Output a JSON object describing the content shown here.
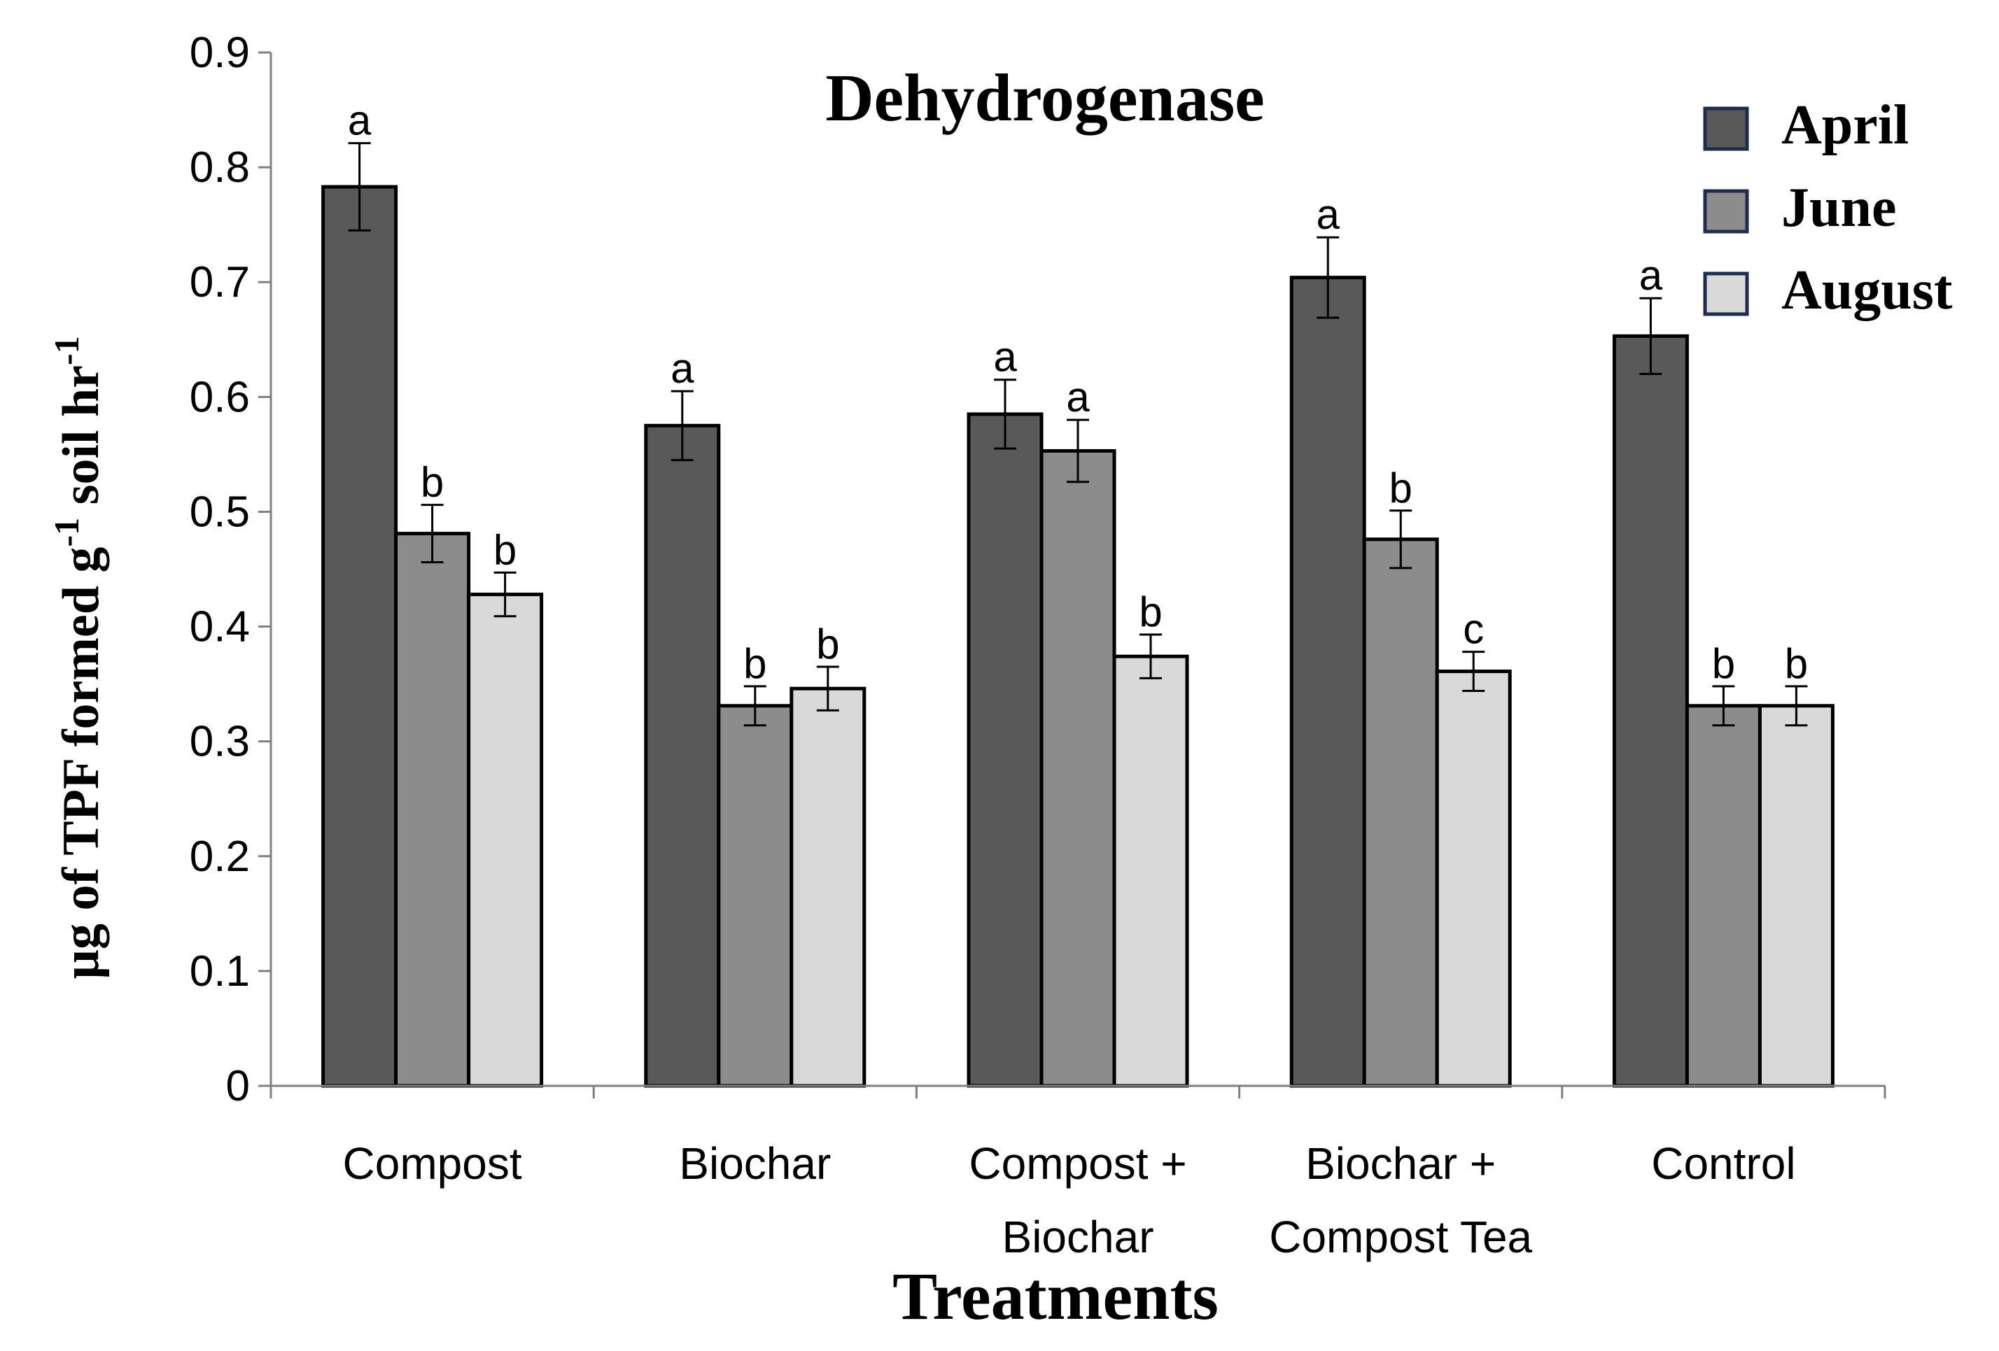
{
  "chart_data": {
    "type": "bar",
    "title": "Dehydrogenase",
    "xlabel": "Treatments",
    "ylabel": {
      "parts": [
        "µg of TPF formed  g",
        "-1",
        " soil hr",
        "-1"
      ],
      "full": "µg of TPF formed g-1 soil hr-1"
    },
    "ylim": [
      0,
      0.9
    ],
    "yticks": [
      "0",
      "0.1",
      "0.2",
      "0.3",
      "0.4",
      "0.5",
      "0.6",
      "0.7",
      "0.8",
      "0.9"
    ],
    "grid": false,
    "legend_position": "top-right",
    "categories": [
      [
        "Compost"
      ],
      [
        "Biochar"
      ],
      [
        "Compost +",
        "Biochar"
      ],
      [
        "Biochar +",
        "Compost Tea"
      ],
      [
        "Control"
      ]
    ],
    "series": [
      {
        "name": "April",
        "color": "#595959",
        "values": [
          0.783,
          0.575,
          0.585,
          0.704,
          0.653
        ],
        "errors": [
          0.038,
          0.03,
          0.03,
          0.035,
          0.033
        ],
        "labels": [
          "a",
          "a",
          "a",
          "a",
          "a"
        ]
      },
      {
        "name": "June",
        "color": "#8c8c8c",
        "values": [
          0.481,
          0.331,
          0.553,
          0.476,
          0.331
        ],
        "errors": [
          0.025,
          0.017,
          0.027,
          0.025,
          0.017
        ],
        "labels": [
          "b",
          "b",
          "a",
          "b",
          "b"
        ]
      },
      {
        "name": "August",
        "color": "#d9d9d9",
        "values": [
          0.428,
          0.346,
          0.374,
          0.361,
          0.331
        ],
        "errors": [
          0.019,
          0.019,
          0.019,
          0.017,
          0.017
        ],
        "labels": [
          "b",
          "b",
          "b",
          "c",
          "b"
        ]
      }
    ]
  }
}
